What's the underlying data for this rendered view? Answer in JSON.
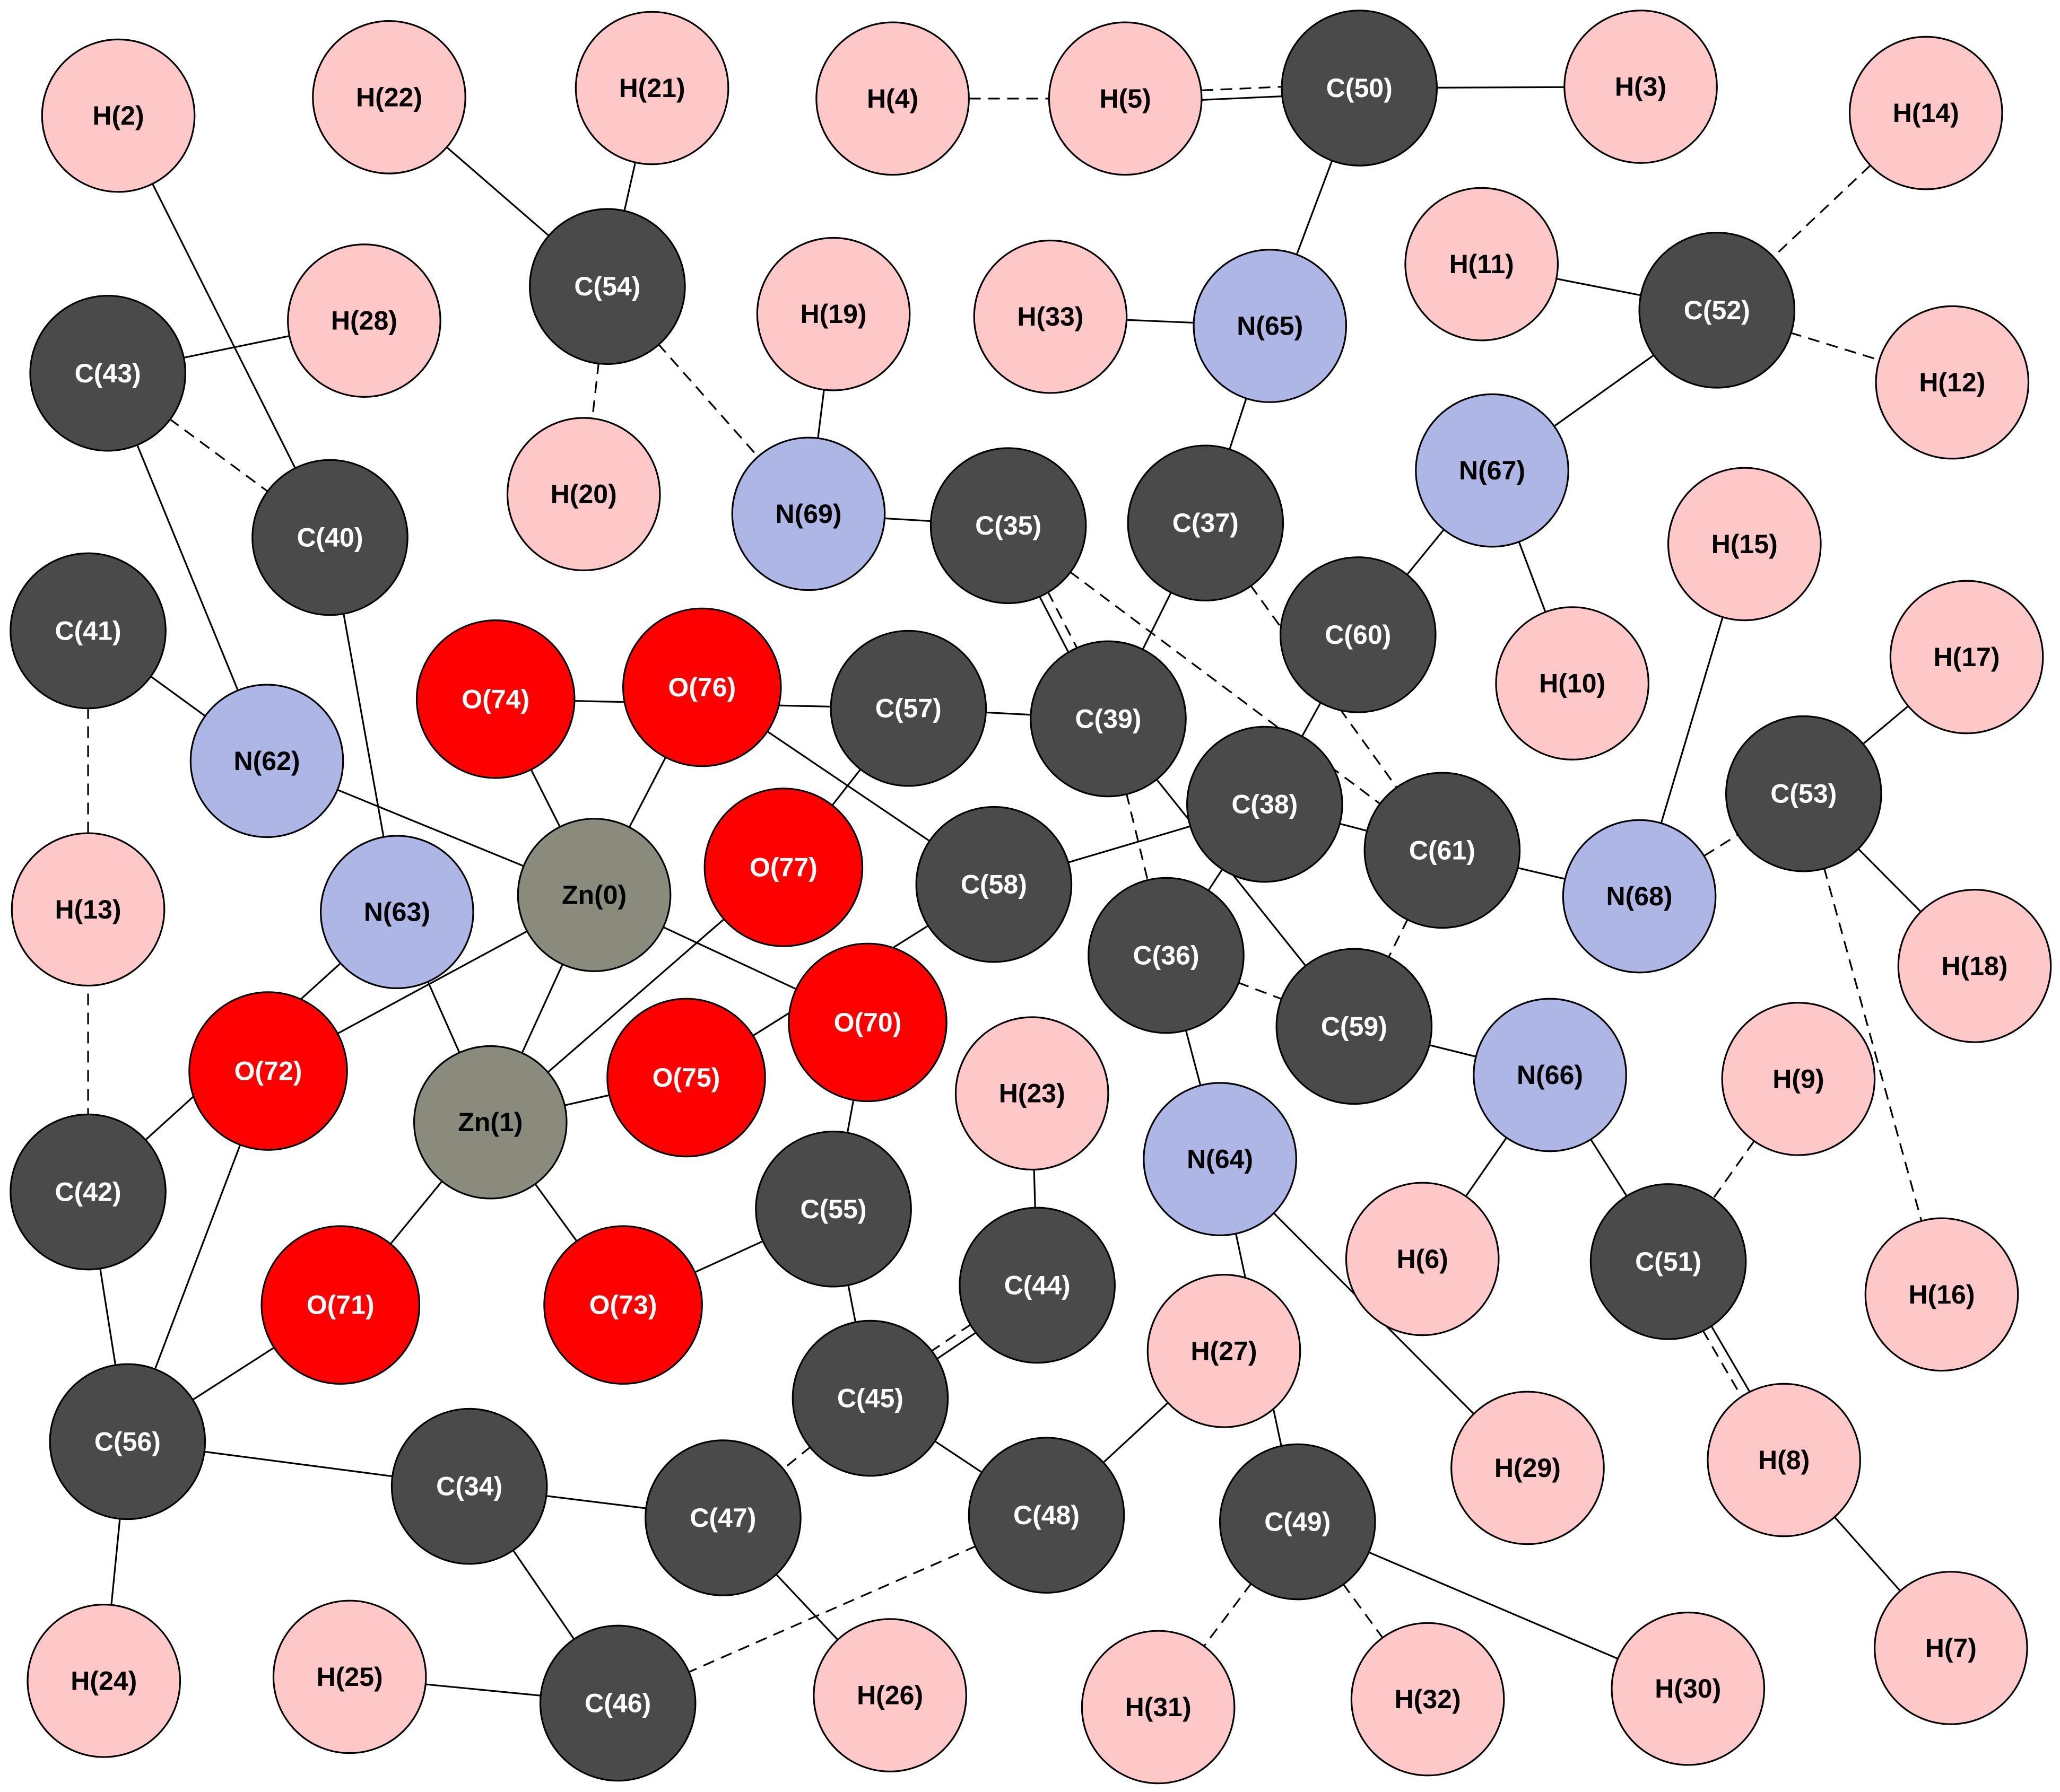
{
  "colors": {
    "C": "#4a4a4a",
    "H": "#ffc8c8",
    "N": "#adb6e4",
    "O": "#ff0000",
    "Zn": "#8a8b7c",
    "label_dark": "#000000",
    "label_light": "#ffffff",
    "stroke": "#000000"
  },
  "atoms": [
    {
      "id": "H2",
      "label": "H(2)",
      "element": "H"
    },
    {
      "id": "H22",
      "label": "H(22)",
      "element": "H"
    },
    {
      "id": "H21",
      "label": "H(21)",
      "element": "H"
    },
    {
      "id": "H4",
      "label": "H(4)",
      "element": "H"
    },
    {
      "id": "H5",
      "label": "H(5)",
      "element": "H"
    },
    {
      "id": "C50",
      "label": "C(50)",
      "element": "C"
    },
    {
      "id": "H3",
      "label": "H(3)",
      "element": "H"
    },
    {
      "id": "H14",
      "label": "H(14)",
      "element": "H"
    },
    {
      "id": "C54",
      "label": "C(54)",
      "element": "C"
    },
    {
      "id": "H11",
      "label": "H(11)",
      "element": "H"
    },
    {
      "id": "C52",
      "label": "C(52)",
      "element": "C"
    },
    {
      "id": "H28",
      "label": "H(28)",
      "element": "H"
    },
    {
      "id": "H19",
      "label": "H(19)",
      "element": "H"
    },
    {
      "id": "H33",
      "label": "H(33)",
      "element": "H"
    },
    {
      "id": "N65",
      "label": "N(65)",
      "element": "N"
    },
    {
      "id": "C43",
      "label": "C(43)",
      "element": "C"
    },
    {
      "id": "H12",
      "label": "H(12)",
      "element": "H"
    },
    {
      "id": "N67",
      "label": "N(67)",
      "element": "N"
    },
    {
      "id": "H20",
      "label": "H(20)",
      "element": "H"
    },
    {
      "id": "N69",
      "label": "N(69)",
      "element": "N"
    },
    {
      "id": "C35",
      "label": "C(35)",
      "element": "C"
    },
    {
      "id": "C37",
      "label": "C(37)",
      "element": "C"
    },
    {
      "id": "C40",
      "label": "C(40)",
      "element": "C"
    },
    {
      "id": "H15",
      "label": "H(15)",
      "element": "H"
    },
    {
      "id": "C41",
      "label": "C(41)",
      "element": "C"
    },
    {
      "id": "C60",
      "label": "C(60)",
      "element": "C"
    },
    {
      "id": "H17",
      "label": "H(17)",
      "element": "H"
    },
    {
      "id": "O74",
      "label": "O(74)",
      "element": "O"
    },
    {
      "id": "O76",
      "label": "O(76)",
      "element": "O"
    },
    {
      "id": "C57",
      "label": "C(57)",
      "element": "C"
    },
    {
      "id": "C39",
      "label": "C(39)",
      "element": "C"
    },
    {
      "id": "H10",
      "label": "H(10)",
      "element": "H"
    },
    {
      "id": "N62",
      "label": "N(62)",
      "element": "N"
    },
    {
      "id": "C38",
      "label": "C(38)",
      "element": "C"
    },
    {
      "id": "C53",
      "label": "C(53)",
      "element": "C"
    },
    {
      "id": "C61",
      "label": "C(61)",
      "element": "C"
    },
    {
      "id": "O77",
      "label": "O(77)",
      "element": "O"
    },
    {
      "id": "C58",
      "label": "C(58)",
      "element": "C"
    },
    {
      "id": "Zn0",
      "label": "Zn(0)",
      "element": "Zn"
    },
    {
      "id": "N68",
      "label": "N(68)",
      "element": "N"
    },
    {
      "id": "H13",
      "label": "H(13)",
      "element": "H"
    },
    {
      "id": "N63",
      "label": "N(63)",
      "element": "N"
    },
    {
      "id": "C36",
      "label": "C(36)",
      "element": "C"
    },
    {
      "id": "H18",
      "label": "H(18)",
      "element": "H"
    },
    {
      "id": "O70",
      "label": "O(70)",
      "element": "O"
    },
    {
      "id": "C59",
      "label": "C(59)",
      "element": "C"
    },
    {
      "id": "O72",
      "label": "O(72)",
      "element": "O"
    },
    {
      "id": "H9",
      "label": "H(9)",
      "element": "H"
    },
    {
      "id": "N66",
      "label": "N(66)",
      "element": "N"
    },
    {
      "id": "O75",
      "label": "O(75)",
      "element": "O"
    },
    {
      "id": "H23",
      "label": "H(23)",
      "element": "H"
    },
    {
      "id": "Zn1",
      "label": "Zn(1)",
      "element": "Zn"
    },
    {
      "id": "N64",
      "label": "N(64)",
      "element": "N"
    },
    {
      "id": "C42",
      "label": "C(42)",
      "element": "C"
    },
    {
      "id": "C55",
      "label": "C(55)",
      "element": "C"
    },
    {
      "id": "H6",
      "label": "H(6)",
      "element": "H"
    },
    {
      "id": "C51",
      "label": "C(51)",
      "element": "C"
    },
    {
      "id": "C44",
      "label": "C(44)",
      "element": "C"
    },
    {
      "id": "H16",
      "label": "H(16)",
      "element": "H"
    },
    {
      "id": "O71",
      "label": "O(71)",
      "element": "O"
    },
    {
      "id": "O73",
      "label": "O(73)",
      "element": "O"
    },
    {
      "id": "H27",
      "label": "H(27)",
      "element": "H"
    },
    {
      "id": "C45",
      "label": "C(45)",
      "element": "C"
    },
    {
      "id": "C56",
      "label": "C(56)",
      "element": "C"
    },
    {
      "id": "H29",
      "label": "H(29)",
      "element": "H"
    },
    {
      "id": "H8",
      "label": "H(8)",
      "element": "H"
    },
    {
      "id": "C34",
      "label": "C(34)",
      "element": "C"
    },
    {
      "id": "C48",
      "label": "C(48)",
      "element": "C"
    },
    {
      "id": "C47",
      "label": "C(47)",
      "element": "C"
    },
    {
      "id": "C49",
      "label": "C(49)",
      "element": "C"
    },
    {
      "id": "H7",
      "label": "H(7)",
      "element": "H"
    },
    {
      "id": "H24",
      "label": "H(24)",
      "element": "H"
    },
    {
      "id": "H25",
      "label": "H(25)",
      "element": "H"
    },
    {
      "id": "H26",
      "label": "H(26)",
      "element": "H"
    },
    {
      "id": "C46",
      "label": "C(46)",
      "element": "C"
    },
    {
      "id": "H31",
      "label": "H(31)",
      "element": "H"
    },
    {
      "id": "H32",
      "label": "H(32)",
      "element": "H"
    },
    {
      "id": "H30",
      "label": "H(30)",
      "element": "H"
    }
  ],
  "bonds": [
    {
      "a": "H4",
      "b": "H5",
      "style": "dashed"
    },
    {
      "a": "H5",
      "b": "C50",
      "style": "dashed"
    },
    {
      "a": "H5",
      "b": "C50",
      "style": "solid"
    },
    {
      "a": "C50",
      "b": "H3",
      "style": "solid"
    },
    {
      "a": "C50",
      "b": "N65",
      "style": "solid"
    },
    {
      "a": "H33",
      "b": "N65",
      "style": "solid"
    },
    {
      "a": "N65",
      "b": "C37",
      "style": "solid"
    },
    {
      "a": "H22",
      "b": "C54",
      "style": "solid"
    },
    {
      "a": "H21",
      "b": "C54",
      "style": "solid"
    },
    {
      "a": "C54",
      "b": "H20",
      "style": "dashed"
    },
    {
      "a": "C54",
      "b": "N69",
      "style": "dashed"
    },
    {
      "a": "H19",
      "b": "N69",
      "style": "solid"
    },
    {
      "a": "N69",
      "b": "C35",
      "style": "solid"
    },
    {
      "a": "H14",
      "b": "C52",
      "style": "dashed"
    },
    {
      "a": "H11",
      "b": "C52",
      "style": "solid"
    },
    {
      "a": "C52",
      "b": "H12",
      "style": "dashed"
    },
    {
      "a": "C52",
      "b": "N67",
      "style": "solid"
    },
    {
      "a": "N67",
      "b": "H10",
      "style": "solid"
    },
    {
      "a": "N67",
      "b": "C60",
      "style": "solid"
    },
    {
      "a": "H2",
      "b": "C40",
      "style": "solid"
    },
    {
      "a": "H28",
      "b": "C43",
      "style": "solid"
    },
    {
      "a": "C43",
      "b": "C40",
      "style": "dashed"
    },
    {
      "a": "C43",
      "b": "N62",
      "style": "solid"
    },
    {
      "a": "C41",
      "b": "N62",
      "style": "solid"
    },
    {
      "a": "C41",
      "b": "C42",
      "style": "dashed"
    },
    {
      "a": "N62",
      "b": "Zn0",
      "style": "solid"
    },
    {
      "a": "C40",
      "b": "N63",
      "style": "solid"
    },
    {
      "a": "C35",
      "b": "C39",
      "style": "dashed"
    },
    {
      "a": "C35",
      "b": "C39",
      "style": "solid"
    },
    {
      "a": "C35",
      "b": "C61",
      "style": "dashed"
    },
    {
      "a": "C37",
      "b": "C39",
      "style": "solid"
    },
    {
      "a": "C37",
      "b": "C61",
      "style": "dashed"
    },
    {
      "a": "C60",
      "b": "C38",
      "style": "solid"
    },
    {
      "a": "O74",
      "b": "C57",
      "style": "solid"
    },
    {
      "a": "O74",
      "b": "Zn0",
      "style": "solid"
    },
    {
      "a": "O76",
      "b": "Zn0",
      "style": "solid"
    },
    {
      "a": "O76",
      "b": "C58",
      "style": "solid"
    },
    {
      "a": "C57",
      "b": "C39",
      "style": "solid"
    },
    {
      "a": "C57",
      "b": "O77",
      "style": "solid"
    },
    {
      "a": "C39",
      "b": "C36",
      "style": "dashed"
    },
    {
      "a": "C39",
      "b": "C59",
      "style": "solid"
    },
    {
      "a": "C38",
      "b": "C58",
      "style": "solid"
    },
    {
      "a": "C38",
      "b": "C61",
      "style": "solid"
    },
    {
      "a": "C38",
      "b": "C36",
      "style": "solid"
    },
    {
      "a": "C61",
      "b": "N68",
      "style": "solid"
    },
    {
      "a": "C61",
      "b": "C59",
      "style": "dashed"
    },
    {
      "a": "H15",
      "b": "N68",
      "style": "solid"
    },
    {
      "a": "N68",
      "b": "C53",
      "style": "dashed"
    },
    {
      "a": "C53",
      "b": "H17",
      "style": "solid"
    },
    {
      "a": "C53",
      "b": "H18",
      "style": "solid"
    },
    {
      "a": "C53",
      "b": "H16",
      "style": "dashed"
    },
    {
      "a": "O77",
      "b": "Zn1",
      "style": "solid"
    },
    {
      "a": "C58",
      "b": "O75",
      "style": "solid"
    },
    {
      "a": "Zn0",
      "b": "O72",
      "style": "solid"
    },
    {
      "a": "Zn0",
      "b": "Zn1",
      "style": "solid"
    },
    {
      "a": "Zn0",
      "b": "O70",
      "style": "solid"
    },
    {
      "a": "N63",
      "b": "Zn1",
      "style": "solid"
    },
    {
      "a": "N63",
      "b": "C42",
      "style": "solid"
    },
    {
      "a": "C36",
      "b": "C59",
      "style": "dashed"
    },
    {
      "a": "C36",
      "b": "N64",
      "style": "solid"
    },
    {
      "a": "C59",
      "b": "N66",
      "style": "solid"
    },
    {
      "a": "O70",
      "b": "C55",
      "style": "solid"
    },
    {
      "a": "O72",
      "b": "C56",
      "style": "solid"
    },
    {
      "a": "O75",
      "b": "Zn1",
      "style": "solid"
    },
    {
      "a": "H23",
      "b": "C44",
      "style": "solid"
    },
    {
      "a": "Zn1",
      "b": "O71",
      "style": "solid"
    },
    {
      "a": "Zn1",
      "b": "O73",
      "style": "solid"
    },
    {
      "a": "N64",
      "b": "H29",
      "style": "solid"
    },
    {
      "a": "N64",
      "b": "C49",
      "style": "solid"
    },
    {
      "a": "N66",
      "b": "H6",
      "style": "solid"
    },
    {
      "a": "N66",
      "b": "C51",
      "style": "solid"
    },
    {
      "a": "H9",
      "b": "C51",
      "style": "dashed"
    },
    {
      "a": "C51",
      "b": "H8",
      "style": "solid"
    },
    {
      "a": "C51",
      "b": "H8",
      "style": "dashed"
    },
    {
      "a": "H8",
      "b": "H7",
      "style": "solid"
    },
    {
      "a": "C42",
      "b": "C56",
      "style": "solid"
    },
    {
      "a": "C55",
      "b": "O73",
      "style": "solid"
    },
    {
      "a": "C55",
      "b": "C45",
      "style": "solid"
    },
    {
      "a": "C44",
      "b": "C45",
      "style": "solid"
    },
    {
      "a": "C44",
      "b": "C45",
      "style": "dashed"
    },
    {
      "a": "C45",
      "b": "C47",
      "style": "dashed"
    },
    {
      "a": "C45",
      "b": "C48",
      "style": "solid"
    },
    {
      "a": "O71",
      "b": "C56",
      "style": "solid"
    },
    {
      "a": "C56",
      "b": "C34",
      "style": "solid"
    },
    {
      "a": "C56",
      "b": "H24",
      "style": "solid"
    },
    {
      "a": "C34",
      "b": "C47",
      "style": "solid"
    },
    {
      "a": "C34",
      "b": "C46",
      "style": "solid"
    },
    {
      "a": "C47",
      "b": "H26",
      "style": "solid"
    },
    {
      "a": "H27",
      "b": "C48",
      "style": "solid"
    },
    {
      "a": "C48",
      "b": "C46",
      "style": "dashed"
    },
    {
      "a": "H25",
      "b": "C46",
      "style": "solid"
    },
    {
      "a": "C49",
      "b": "H31",
      "style": "dashed"
    },
    {
      "a": "C49",
      "b": "H32",
      "style": "dashed"
    },
    {
      "a": "C49",
      "b": "H30",
      "style": "solid"
    }
  ]
}
